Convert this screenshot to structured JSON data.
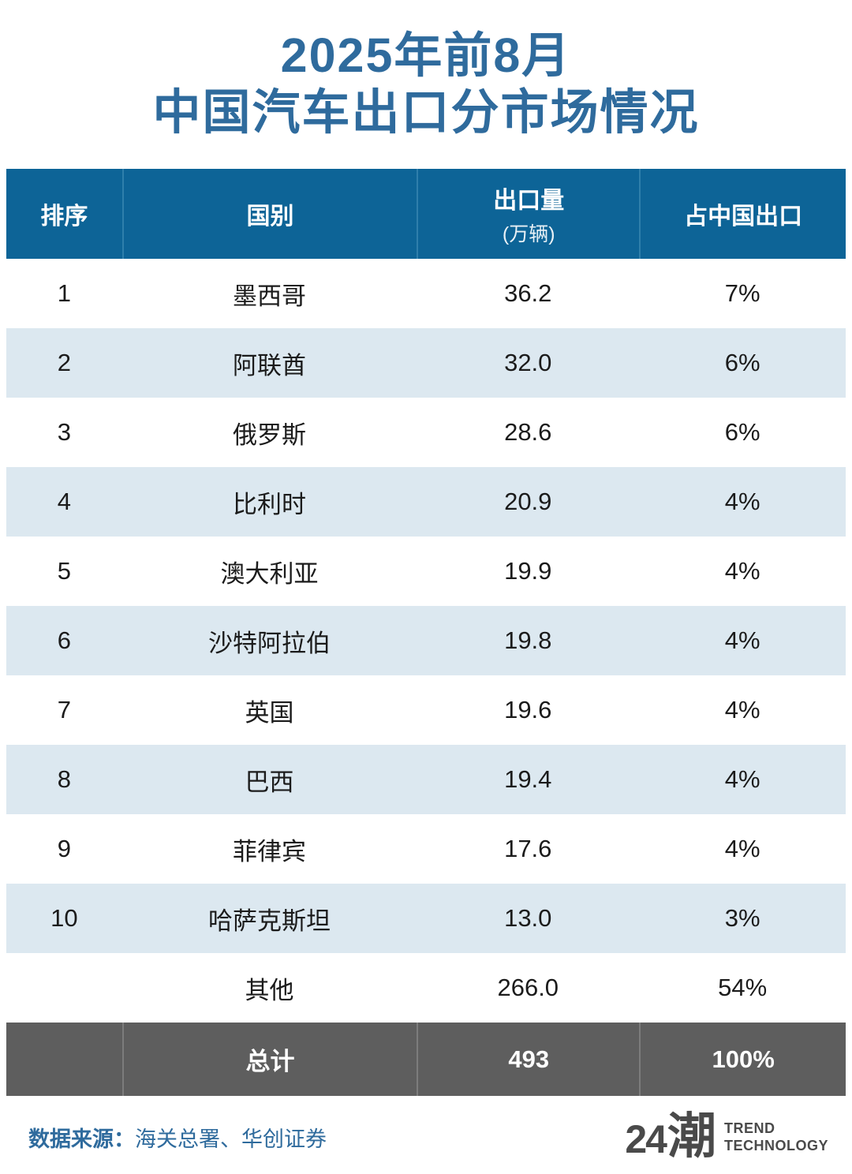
{
  "title": {
    "line1": "2025年前8月",
    "line2": "中国汽车出口分市场情况"
  },
  "table": {
    "headers": {
      "rank": "排序",
      "country": "国别",
      "volume": "出口量",
      "volume_unit": "(万辆)",
      "share": "占中国出口"
    },
    "rows": [
      {
        "rank": "1",
        "country": "墨西哥",
        "volume": "36.2",
        "share": "7%"
      },
      {
        "rank": "2",
        "country": "阿联酋",
        "volume": "32.0",
        "share": "6%"
      },
      {
        "rank": "3",
        "country": "俄罗斯",
        "volume": "28.6",
        "share": "6%"
      },
      {
        "rank": "4",
        "country": "比利时",
        "volume": "20.9",
        "share": "4%"
      },
      {
        "rank": "5",
        "country": "澳大利亚",
        "volume": "19.9",
        "share": "4%"
      },
      {
        "rank": "6",
        "country": "沙特阿拉伯",
        "volume": "19.8",
        "share": "4%"
      },
      {
        "rank": "7",
        "country": "英国",
        "volume": "19.6",
        "share": "4%"
      },
      {
        "rank": "8",
        "country": "巴西",
        "volume": "19.4",
        "share": "4%"
      },
      {
        "rank": "9",
        "country": "菲律宾",
        "volume": "17.6",
        "share": "4%"
      },
      {
        "rank": "10",
        "country": "哈萨克斯坦",
        "volume": "13.0",
        "share": "3%"
      },
      {
        "rank": "",
        "country": "其他",
        "volume": "266.0",
        "share": "54%"
      }
    ],
    "total": {
      "rank": "",
      "country": "总计",
      "volume": "493",
      "share": "100%"
    }
  },
  "footer": {
    "source_label": "数据来源：",
    "source_text": "海关总署、华创证券",
    "logo_number": "24",
    "logo_char": "潮",
    "logo_en_line1": "TREND",
    "logo_en_line2": "TECHNOLOGY"
  },
  "colors": {
    "title_blue": "#2f6b9d",
    "header_blue": "#0d6497",
    "header_separator": "#2f7fab",
    "row_alt_blue": "#dce8f0",
    "total_gray": "#5e5e5e",
    "total_separator": "#7c7c7c",
    "body_text": "#1b1b1b",
    "logo_gray": "#4a4a4a"
  },
  "chart_data": {
    "type": "table",
    "title": "2025年前8月中国汽车出口分市场情况",
    "columns": [
      "排序",
      "国别",
      "出口量(万辆)",
      "占中国出口"
    ],
    "rows": [
      [
        1,
        "墨西哥",
        36.2,
        "7%"
      ],
      [
        2,
        "阿联酋",
        32.0,
        "6%"
      ],
      [
        3,
        "俄罗斯",
        28.6,
        "6%"
      ],
      [
        4,
        "比利时",
        20.9,
        "4%"
      ],
      [
        5,
        "澳大利亚",
        19.9,
        "4%"
      ],
      [
        6,
        "沙特阿拉伯",
        19.8,
        "4%"
      ],
      [
        7,
        "英国",
        19.6,
        "4%"
      ],
      [
        8,
        "巴西",
        19.4,
        "4%"
      ],
      [
        9,
        "菲律宾",
        17.6,
        "4%"
      ],
      [
        10,
        "哈萨克斯坦",
        13.0,
        "3%"
      ],
      [
        "",
        "其他",
        266.0,
        "54%"
      ],
      [
        "",
        "总计",
        493,
        "100%"
      ]
    ],
    "source": "海关总署、华创证券"
  }
}
